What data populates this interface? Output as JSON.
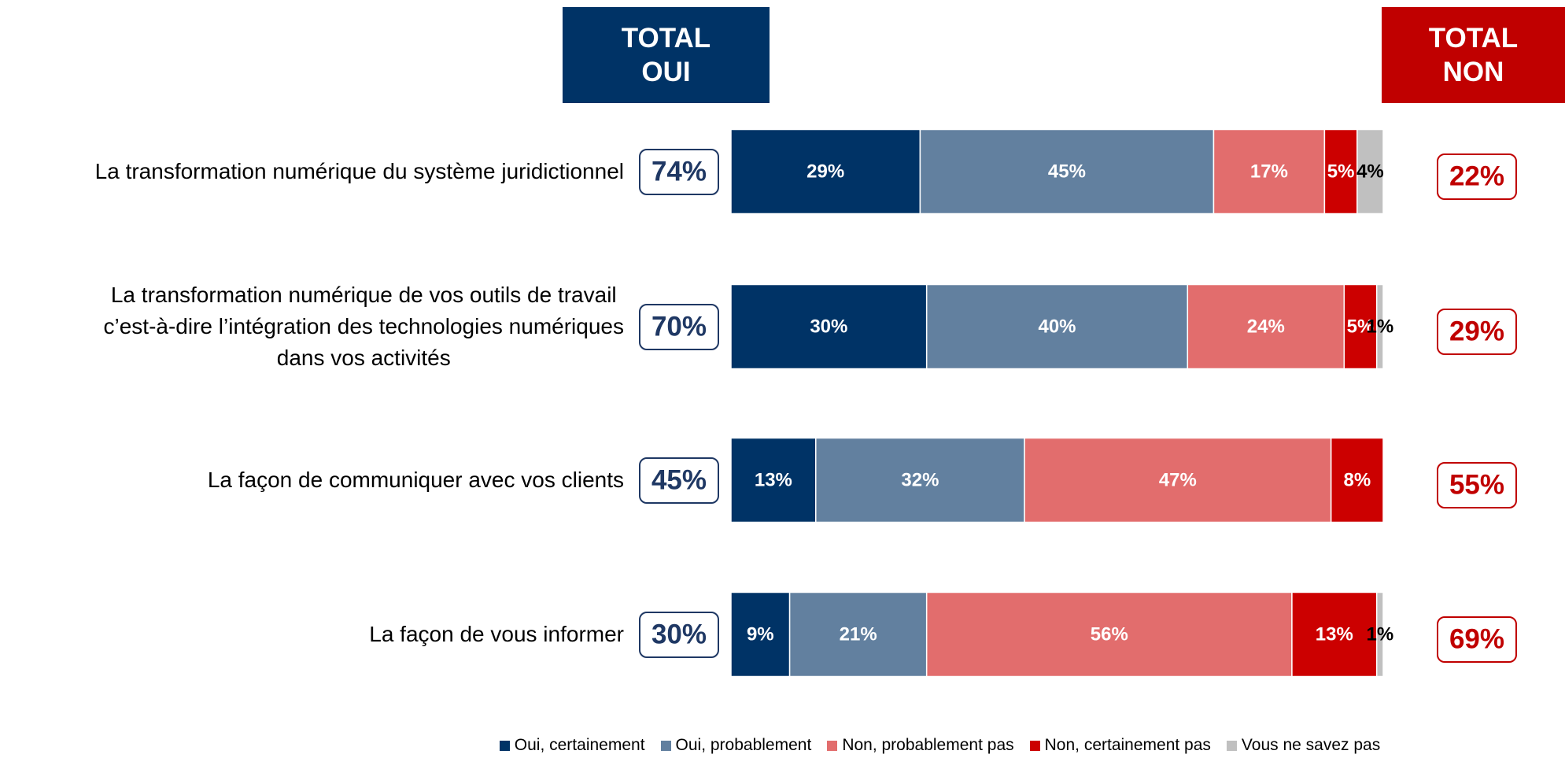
{
  "chart_data": {
    "type": "stacked_bar_horizontal",
    "header_yes": "TOTAL\nOUI",
    "header_no": "TOTAL\nNON",
    "header_yes_color": "#003366",
    "header_no_color": "#c00000",
    "categories": [
      "La transformation numérique du système juridictionnel",
      "La transformation numérique de vos outils de travail\nc’est-à-dire l’intégration des technologies numériques\ndans vos activités",
      "La façon de communiquer avec vos clients",
      "La façon de vous informer"
    ],
    "xlim": [
      0,
      100
    ],
    "series": [
      {
        "name": "Oui, certainement",
        "color": "#003366",
        "label_color": "#ffffff",
        "values": [
          29,
          30,
          13,
          9
        ],
        "value_labels": [
          "29%",
          "30%",
          "13%",
          "9%"
        ]
      },
      {
        "name": "Oui, probablement",
        "color": "#62809f",
        "label_color": "#ffffff",
        "values": [
          45,
          40,
          32,
          21
        ],
        "value_labels": [
          "45%",
          "40%",
          "32%",
          "21%"
        ]
      },
      {
        "name": "Non, probablement pas",
        "color": "#e26d6d",
        "label_color": "#ffffff",
        "values": [
          17,
          24,
          47,
          56
        ],
        "value_labels": [
          "17%",
          "24%",
          "47%",
          "56%"
        ]
      },
      {
        "name": "Non, certainement pas",
        "color": "#cc0000",
        "label_color": "#ffffff",
        "values": [
          5,
          5,
          8,
          13
        ],
        "value_labels": [
          "5%",
          "5%",
          "8%",
          "13%"
        ]
      },
      {
        "name": "Vous ne savez pas",
        "color": "#c0c0c0",
        "label_color": "#000000",
        "values": [
          4,
          1,
          null,
          1
        ],
        "value_labels": [
          "4%",
          "1%",
          null,
          "1%"
        ]
      }
    ],
    "total_yes": {
      "color": "#1f3864",
      "values": [
        74,
        70,
        45,
        30
      ],
      "value_labels": [
        "74%",
        "70%",
        "45%",
        "30%"
      ]
    },
    "total_no": {
      "color": "#c00000",
      "values": [
        22,
        29,
        55,
        69
      ],
      "value_labels": [
        "22%",
        "29%",
        "55%",
        "69%"
      ]
    }
  }
}
